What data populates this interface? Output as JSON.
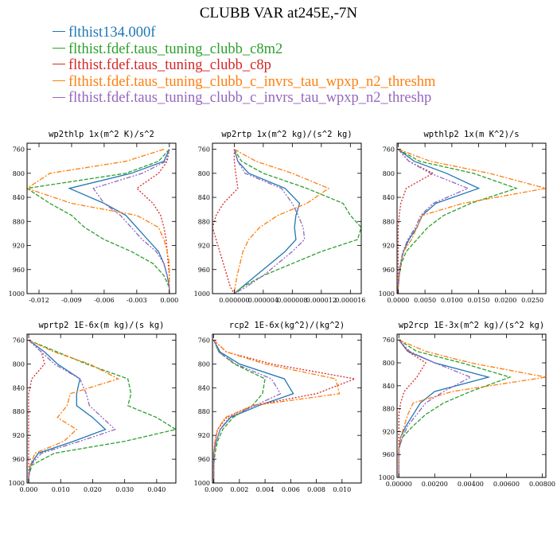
{
  "page": {
    "title": "CLUBB VAR at245E,-7N"
  },
  "legend": [
    {
      "label": "flthist134.000f",
      "color": "#1f77b4",
      "dash": ""
    },
    {
      "label": "flthist.fdef.taus_tuning_clubb_c8m2",
      "color": "#2ca02c",
      "dash": "5,2"
    },
    {
      "label": "flthist.fdef.taus_tuning_clubb_c8p",
      "color": "#d62728",
      "dash": "2,2"
    },
    {
      "label": "flthist.fdef.taus_tuning_clubb_c_invrs_tau_wpxp_n2_threshm",
      "color": "#ff7f0e",
      "dash": "6,2,2,2"
    },
    {
      "label": "flthist.fdef.taus_tuning_clubb_c_invrs_tau_wpxp_n2_threshp",
      "color": "#9467bd",
      "dash": "6,2,2,2,2,2"
    }
  ],
  "chart_data": [
    {
      "type": "line",
      "title": "wp2thlp  1x(m^2 K)/s^2",
      "ylim": [
        1000,
        750
      ],
      "yticks": [
        760,
        800,
        840,
        880,
        920,
        960,
        1000
      ],
      "xlim": [
        -0.0131,
        0.0006
      ],
      "xticks": [
        -0.012,
        -0.009,
        -0.006,
        -0.003,
        0.0
      ],
      "xticklabels": [
        "-0.012",
        "-0.009",
        "-0.006",
        "-0.003",
        "0.000"
      ],
      "y": [
        760,
        780,
        800,
        825,
        850,
        870,
        890,
        910,
        930,
        950,
        970,
        990,
        1000
      ],
      "series": [
        {
          "values": [
            0.0,
            -0.0005,
            -0.0035,
            -0.0092,
            -0.006,
            -0.004,
            -0.003,
            -0.002,
            -0.001,
            -0.0005,
            -0.0002,
            0.0,
            0.0
          ]
        },
        {
          "values": [
            0.0,
            -0.001,
            -0.004,
            -0.0131,
            -0.011,
            -0.009,
            -0.0078,
            -0.006,
            -0.0035,
            -0.0015,
            -0.0005,
            0.0,
            0.0
          ]
        },
        {
          "values": [
            0.0,
            -0.0002,
            -0.001,
            -0.003,
            -0.0015,
            -0.0008,
            -0.0005,
            -0.0003,
            -0.0002,
            -0.0001,
            0.0,
            0.0,
            0.0
          ]
        },
        {
          "values": [
            -0.0005,
            -0.004,
            -0.011,
            -0.0131,
            -0.009,
            -0.003,
            -0.001,
            -0.0005,
            -0.0002,
            0.0,
            0.0,
            0.0,
            0.0
          ]
        },
        {
          "values": [
            0.0,
            -0.0003,
            -0.0025,
            -0.007,
            -0.006,
            -0.0045,
            -0.0035,
            -0.0025,
            -0.0012,
            -0.0005,
            -0.0002,
            0.0,
            0.0
          ]
        }
      ]
    },
    {
      "type": "line",
      "title": "wp2rtp  1x(m^2 kg)/(s^2 kg)",
      "ylim": [
        1000,
        750
      ],
      "yticks": [
        760,
        800,
        840,
        880,
        920,
        960,
        1000
      ],
      "xlim": [
        -3e-06,
        1.75e-05
      ],
      "xticks": [
        0.0,
        4e-06,
        8e-06,
        1.2e-05,
        1.6e-05
      ],
      "xticklabels": [
        "0.000000",
        "0.000004",
        "0.000008",
        "0.000012",
        "0.000016"
      ],
      "y": [
        760,
        780,
        800,
        825,
        850,
        870,
        890,
        910,
        930,
        950,
        970,
        990,
        1000
      ],
      "series": [
        {
          "values": [
            0.0,
            5e-07,
            2e-06,
            7e-06,
            9e-06,
            8.5e-06,
            8.3e-06,
            8.5e-06,
            7e-06,
            5e-06,
            3e-06,
            1e-06,
            0.0
          ]
        },
        {
          "values": [
            0.0,
            1e-06,
            4e-06,
            1e-05,
            1.5e-05,
            1.6e-05,
            1.75e-05,
            1.7e-05,
            1.2e-05,
            8e-06,
            4e-06,
            1e-06,
            0.0
          ]
        },
        {
          "values": [
            0.0,
            0.0,
            2e-07,
            5e-07,
            -1.5e-06,
            -2.5e-06,
            -3e-06,
            -2.5e-06,
            -2e-06,
            -1.5e-06,
            -1e-06,
            -5e-07,
            0.0
          ]
        },
        {
          "values": [
            0.0,
            3e-06,
            8e-06,
            1.3e-05,
            1e-05,
            6e-06,
            3.5e-06,
            2e-06,
            1.2e-06,
            8e-07,
            4e-07,
            1e-07,
            0.0
          ]
        },
        {
          "values": [
            0.0,
            5e-07,
            1.5e-06,
            6.5e-06,
            8e-06,
            8.8e-06,
            9.5e-06,
            9.7e-06,
            8e-06,
            6e-06,
            4e-06,
            1.5e-06,
            0.0
          ]
        }
      ]
    },
    {
      "type": "line",
      "title": "wpthlp2  1x(m K^2)/s",
      "ylim": [
        1000,
        750
      ],
      "yticks": [
        760,
        800,
        840,
        880,
        920,
        960,
        1000
      ],
      "xlim": [
        -0.0002,
        0.0275
      ],
      "xticks": [
        0.0,
        0.005,
        0.01,
        0.015,
        0.02,
        0.025
      ],
      "xticklabels": [
        "0.0000",
        "0.0050",
        "0.0100",
        "0.0150",
        "0.0200",
        "0.0250"
      ],
      "y": [
        760,
        780,
        800,
        825,
        850,
        870,
        890,
        910,
        930,
        950,
        970,
        990,
        1000
      ],
      "series": [
        {
          "values": [
            0.0,
            0.003,
            0.009,
            0.015,
            0.007,
            0.0045,
            0.0035,
            0.002,
            0.001,
            0.0005,
            0.0002,
            0.0,
            0.0
          ]
        },
        {
          "values": [
            0.0,
            0.004,
            0.014,
            0.022,
            0.0135,
            0.0085,
            0.0055,
            0.0035,
            0.0015,
            0.0006,
            0.0002,
            0.0,
            0.0
          ]
        },
        {
          "values": [
            0.0,
            0.002,
            0.0065,
            0.0015,
            0.0005,
            0.0002,
            0.0,
            0.0,
            0.0,
            0.0,
            0.0,
            0.0,
            0.0
          ]
        },
        {
          "values": [
            0.0,
            0.006,
            0.017,
            0.0275,
            0.012,
            0.0045,
            0.0035,
            0.0025,
            0.001,
            0.0005,
            0.0002,
            0.0,
            0.0
          ]
        },
        {
          "values": [
            0.0,
            0.002,
            0.006,
            0.013,
            0.0065,
            0.0042,
            0.0032,
            0.0018,
            0.0009,
            0.0004,
            0.0001,
            0.0,
            0.0
          ]
        }
      ]
    },
    {
      "type": "line",
      "title": "wprtp2  1E-6x(m kg)/(s kg)",
      "ylim": [
        1000,
        750
      ],
      "yticks": [
        760,
        800,
        840,
        880,
        920,
        960,
        1000
      ],
      "xlim": [
        -0.0005,
        0.046
      ],
      "xticks": [
        0.0,
        0.01,
        0.02,
        0.03,
        0.04
      ],
      "xticklabels": [
        "0.000",
        "0.010",
        "0.020",
        "0.030",
        "0.040"
      ],
      "y": [
        760,
        780,
        800,
        825,
        850,
        870,
        890,
        910,
        930,
        950,
        970,
        990,
        1000
      ],
      "series": [
        {
          "values": [
            0.0,
            0.005,
            0.009,
            0.016,
            0.015,
            0.015,
            0.02,
            0.024,
            0.014,
            0.003,
            0.0005,
            0.0,
            0.0
          ]
        },
        {
          "values": [
            0.0,
            0.009,
            0.018,
            0.031,
            0.032,
            0.031,
            0.04,
            0.046,
            0.03,
            0.008,
            0.001,
            0.0,
            0.0
          ]
        },
        {
          "values": [
            0.0,
            0.004,
            0.005,
            0.001,
            0.0,
            0.0,
            0.0,
            0.0,
            0.0,
            0.0,
            0.0,
            0.0,
            0.0
          ]
        },
        {
          "values": [
            0.0,
            0.008,
            0.019,
            0.028,
            0.013,
            0.012,
            0.009,
            0.015,
            0.011,
            0.002,
            0.0005,
            0.0,
            0.0
          ]
        },
        {
          "values": [
            0.0,
            0.004,
            0.008,
            0.016,
            0.018,
            0.019,
            0.023,
            0.027,
            0.016,
            0.004,
            0.0006,
            0.0,
            0.0
          ]
        }
      ]
    },
    {
      "type": "line",
      "title": "rcp2  1E-6x(kg^2)/(kg^2)",
      "ylim": [
        1000,
        750
      ],
      "yticks": [
        760,
        800,
        840,
        880,
        920,
        960,
        1000
      ],
      "xlim": [
        -0.0001,
        0.0115
      ],
      "xticks": [
        0.0,
        0.002,
        0.004,
        0.006,
        0.008,
        0.01
      ],
      "xticklabels": [
        "0.000",
        "0.002",
        "0.004",
        "0.006",
        "0.008",
        "0.010"
      ],
      "y": [
        760,
        780,
        800,
        825,
        850,
        870,
        890,
        910,
        930,
        950,
        970,
        990,
        1000
      ],
      "series": [
        {
          "values": [
            0.0,
            0.0005,
            0.002,
            0.0055,
            0.0062,
            0.0035,
            0.0013,
            0.0005,
            0.0002,
            0.0,
            0.0,
            0.0,
            0.0
          ]
        },
        {
          "values": [
            0.0,
            0.0004,
            0.0016,
            0.004,
            0.0038,
            0.003,
            0.0015,
            0.0007,
            0.0003,
            0.0001,
            0.0,
            0.0,
            0.0
          ]
        },
        {
          "values": [
            0.0,
            0.001,
            0.0045,
            0.011,
            0.008,
            0.003,
            0.001,
            0.0003,
            0.0001,
            0.0,
            0.0,
            0.0,
            0.0
          ]
        },
        {
          "values": [
            0.0,
            0.001,
            0.004,
            0.0095,
            0.0098,
            0.003,
            0.0009,
            0.0003,
            0.0001,
            0.0,
            0.0,
            0.0,
            0.0
          ]
        },
        {
          "values": [
            0.0,
            0.0004,
            0.0017,
            0.0045,
            0.0052,
            0.0032,
            0.0012,
            0.0005,
            0.0002,
            0.0,
            0.0,
            0.0,
            0.0
          ]
        }
      ]
    },
    {
      "type": "line",
      "title": "wp2rcp  1E-3x(m^2 kg)/(s^2 kg)",
      "ylim": [
        1000,
        750
      ],
      "yticks": [
        760,
        800,
        840,
        880,
        920,
        960,
        1000
      ],
      "xlim": [
        -0.0001,
        0.0082
      ],
      "xticks": [
        0.0,
        0.002,
        0.004,
        0.006,
        0.008
      ],
      "xticklabels": [
        "0.00000",
        "0.00200",
        "0.00400",
        "0.00600",
        "0.00800"
      ],
      "y": [
        760,
        780,
        800,
        825,
        850,
        870,
        890,
        910,
        930,
        950,
        970,
        990,
        1000
      ],
      "series": [
        {
          "values": [
            0.0,
            0.0005,
            0.002,
            0.005,
            0.002,
            0.0012,
            0.0008,
            0.0004,
            0.0001,
            0.0,
            0.0,
            0.0,
            0.0
          ]
        },
        {
          "values": [
            0.0,
            0.001,
            0.0035,
            0.0062,
            0.004,
            0.0025,
            0.0015,
            0.0008,
            0.0002,
            0.0,
            0.0,
            0.0,
            0.0
          ]
        },
        {
          "values": [
            0.0,
            0.0005,
            0.0015,
            0.001,
            0.0003,
            0.0001,
            0.0,
            0.0,
            0.0,
            0.0,
            0.0,
            0.0,
            0.0
          ]
        },
        {
          "values": [
            0.0,
            0.0015,
            0.004,
            0.0082,
            0.003,
            0.0008,
            0.0005,
            0.0003,
            0.0001,
            0.0,
            0.0,
            0.0,
            0.0
          ]
        },
        {
          "values": [
            0.0,
            0.0006,
            0.002,
            0.004,
            0.0025,
            0.0015,
            0.001,
            0.0005,
            0.0002,
            0.0,
            0.0,
            0.0,
            0.0
          ]
        }
      ]
    }
  ]
}
